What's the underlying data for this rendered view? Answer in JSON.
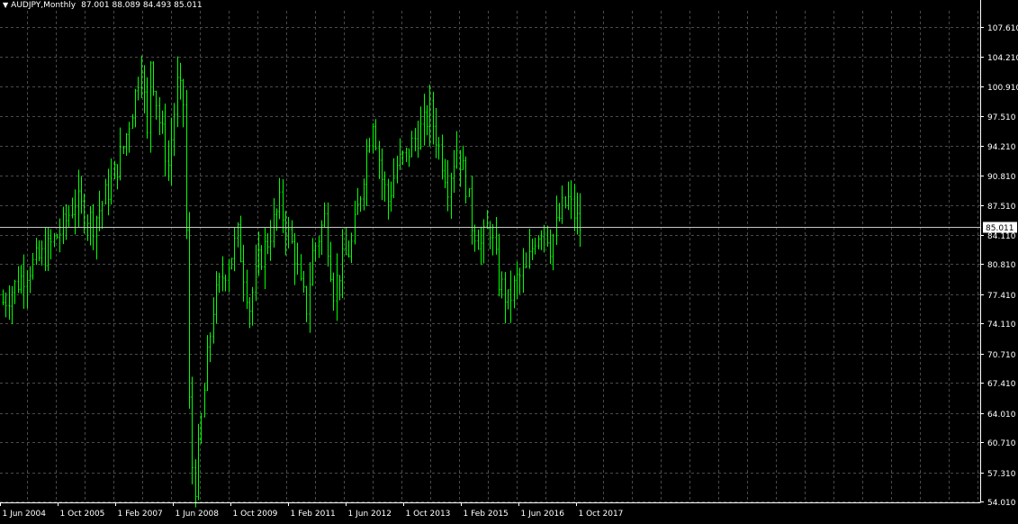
{
  "header": {
    "symbol_timeframe": "AUDJPY,Monthly",
    "ohlc": "87.001 88.089 84.493 85.011",
    "menu_icon": "triangle-down-icon"
  },
  "colors": {
    "background": "#000000",
    "grid": "#4a4a4a",
    "axis": "#ffffff",
    "candle": "#00ff00",
    "bid_line": "#c8c8c8",
    "bid_label_bg": "#ffffff",
    "bid_label_fg": "#000000"
  },
  "chart_data": {
    "type": "candlestick",
    "symbol": "AUDJPY",
    "timeframe": "Monthly",
    "grid": true,
    "last_price": "85.011",
    "y_ticks": [
      "107.610",
      "104.210",
      "100.910",
      "97.510",
      "94.210",
      "90.810",
      "87.510",
      "84.110",
      "80.810",
      "77.410",
      "74.110",
      "70.710",
      "67.410",
      "64.010",
      "60.710",
      "57.310",
      "54.010"
    ],
    "x_ticks": [
      "1 Jun 2004",
      "1 Oct 2005",
      "1 Feb 2007",
      "1 Jun 2008",
      "1 Oct 2009",
      "1 Feb 2011",
      "1 Jun 2012",
      "1 Oct 2013",
      "1 Feb 2015",
      "1 Jun 2016",
      "1 Oct 2017"
    ],
    "ylim": [
      54.01,
      107.61
    ],
    "anchors": [
      [
        0,
        76.5
      ],
      [
        8,
        80.2
      ],
      [
        14,
        82.0
      ],
      [
        20,
        85.0
      ],
      [
        24,
        88.0
      ],
      [
        30,
        85.5
      ],
      [
        36,
        90.0
      ],
      [
        40,
        94.0
      ],
      [
        44,
        100.0
      ],
      [
        46,
        104.0
      ],
      [
        48,
        95.0
      ],
      [
        49,
        104.0
      ],
      [
        52,
        97.0
      ],
      [
        55,
        92.0
      ],
      [
        58,
        101.0
      ],
      [
        60,
        99.0
      ],
      [
        61,
        84.5
      ],
      [
        62,
        65.0
      ],
      [
        63,
        58.0
      ],
      [
        64,
        56.0
      ],
      [
        66,
        63.0
      ],
      [
        68,
        70.0
      ],
      [
        70,
        76.0
      ],
      [
        73,
        79.5
      ],
      [
        76,
        82.0
      ],
      [
        78,
        84.0
      ],
      [
        80,
        80.0
      ],
      [
        82,
        76.0
      ],
      [
        85,
        81.0
      ],
      [
        88,
        83.5
      ],
      [
        92,
        87.5
      ],
      [
        95,
        84.0
      ],
      [
        97,
        82.0
      ],
      [
        99,
        78.0
      ],
      [
        101,
        76.0
      ],
      [
        103,
        82.0
      ],
      [
        107,
        86.0
      ],
      [
        110,
        78.0
      ],
      [
        113,
        81.0
      ],
      [
        116,
        83.0
      ],
      [
        119,
        89.0
      ],
      [
        121,
        93.5
      ],
      [
        123,
        97.5
      ],
      [
        126,
        90.5
      ],
      [
        128,
        88.0
      ],
      [
        131,
        92.0
      ],
      [
        134,
        93.0
      ],
      [
        137,
        95.0
      ],
      [
        140,
        96.5
      ],
      [
        142,
        98.0
      ],
      [
        145,
        94.0
      ],
      [
        148,
        90.0
      ],
      [
        151,
        94.0
      ],
      [
        154,
        90.0
      ],
      [
        156,
        85.5
      ],
      [
        159,
        83.0
      ],
      [
        162,
        85.0
      ],
      [
        165,
        79.0
      ],
      [
        168,
        76.5
      ],
      [
        171,
        79.0
      ],
      [
        174,
        80.0
      ],
      [
        177,
        84.0
      ],
      [
        180,
        85.5
      ],
      [
        182,
        83.0
      ],
      [
        184,
        85.0
      ],
      [
        186,
        87.0
      ],
      [
        188,
        88.0
      ],
      [
        190,
        86.5
      ],
      [
        192,
        85.0
      ]
    ]
  }
}
